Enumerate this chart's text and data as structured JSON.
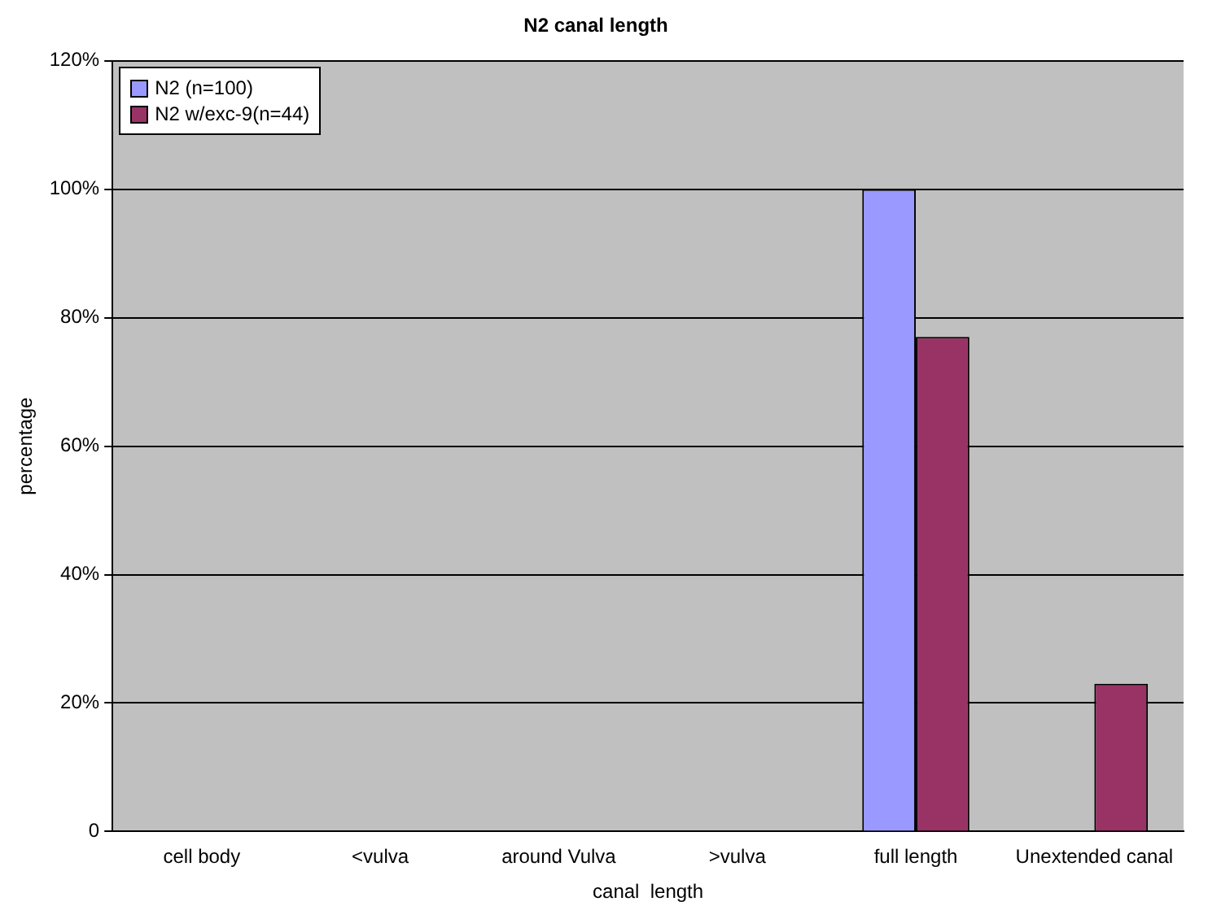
{
  "chart_data": {
    "type": "bar",
    "title": "N2 canal length",
    "xlabel": "canal  length",
    "ylabel": "percentage",
    "categories": [
      "cell body",
      "<vulva",
      "around Vulva",
      ">vulva",
      "full length",
      "Unextended canal"
    ],
    "series": [
      {
        "name": "N2 (n=100)",
        "color": "#9999ff",
        "values": [
          0,
          0,
          0,
          0,
          100,
          0
        ]
      },
      {
        "name": "N2 w/exc-9(n=44)",
        "color": "#993366",
        "values": [
          0,
          0,
          0,
          0,
          77,
          23
        ]
      }
    ],
    "ylim": [
      0,
      120
    ],
    "yticks": [
      0,
      {
        "value": 20,
        "label": "20%"
      },
      {
        "value": 40,
        "label": "40%"
      },
      {
        "value": 60,
        "label": "60%"
      },
      {
        "value": 80,
        "label": "80%"
      },
      {
        "value": 100,
        "label": "100%"
      },
      {
        "value": 120,
        "label": "120%"
      }
    ],
    "grid": "y",
    "legend": "top left"
  }
}
